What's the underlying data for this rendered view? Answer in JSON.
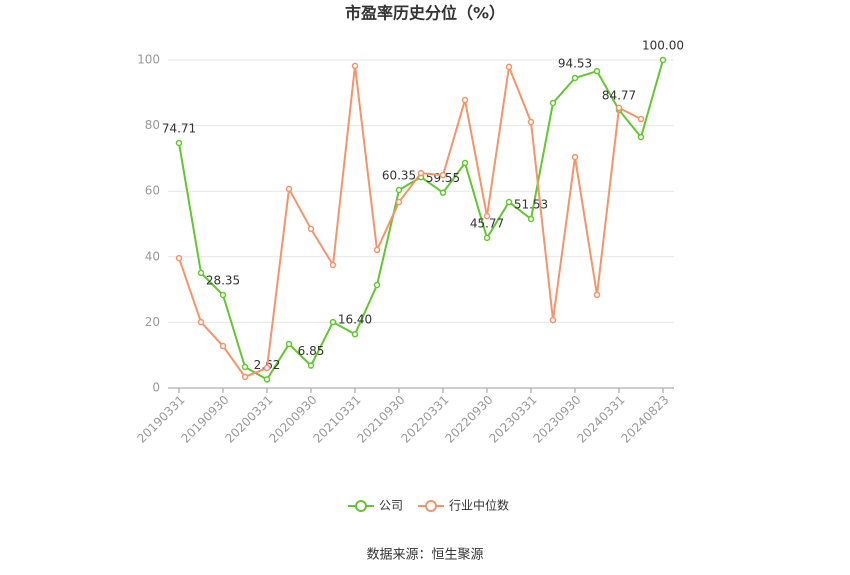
{
  "chart_data": {
    "type": "line",
    "title": "市盈率历史分位（%）",
    "categories": [
      "20190331",
      null,
      "20190930",
      null,
      "20200331",
      null,
      "20200930",
      null,
      "20210331",
      null,
      "20210930",
      null,
      "20220331",
      null,
      "20220930",
      null,
      "20230331",
      null,
      "20230930",
      null,
      "20240331",
      null,
      "20240823"
    ],
    "series": [
      {
        "name": "公司",
        "color": "#62c62e",
        "values": [
          74.71,
          35.1,
          28.35,
          6.4,
          2.62,
          13.4,
          6.85,
          20.1,
          16.4,
          31.4,
          60.35,
          64.3,
          59.55,
          68.6,
          45.77,
          56.7,
          51.53,
          86.9,
          94.53,
          96.6,
          84.77,
          76.5,
          100
        ],
        "value_labels": [
          "74.71",
          null,
          "28.35",
          null,
          "2.62",
          null,
          "6.85",
          null,
          "16.40",
          null,
          "60.35",
          null,
          "59.55",
          null,
          "45.77",
          null,
          "51.53",
          null,
          "94.53",
          null,
          "84.77",
          null,
          "100.00"
        ]
      },
      {
        "name": "行业中位数",
        "color": "#f4946a",
        "values": [
          39.6,
          20.1,
          12.8,
          3.4,
          6.1,
          60.7,
          48.5,
          37.5,
          98.2,
          42.1,
          56.7,
          65.5,
          64.9,
          87.8,
          52.4,
          97.9,
          81.1,
          20.7,
          70.4,
          28.4,
          85.4,
          82,
          null
        ]
      }
    ],
    "ylim": [
      0,
      100
    ],
    "yticks": [
      0,
      20,
      40,
      60,
      80,
      100
    ],
    "grid": true,
    "legend": "bottom",
    "source": "数据来源：恒生聚源"
  }
}
